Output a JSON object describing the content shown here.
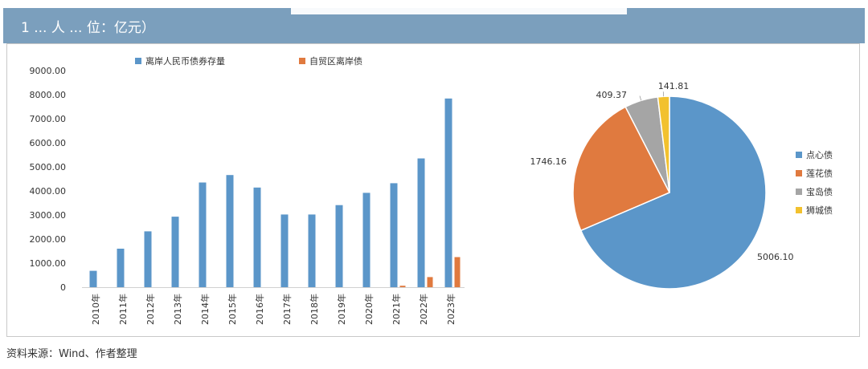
{
  "header": {
    "title": "1 ... 人 ... 位：亿元）"
  },
  "source_note": "资料来源：Wind、作者整理",
  "colors": {
    "header_bg": "#7b9fbd",
    "blue": "#5b96c9",
    "orange": "#e07a3f",
    "gray": "#a5a5a5",
    "yellow": "#f2c12e"
  },
  "chart_data": [
    {
      "type": "bar",
      "categories": [
        "2010年",
        "2011年",
        "2012年",
        "2013年",
        "2014年",
        "2015年",
        "2016年",
        "2017年",
        "2018年",
        "2019年",
        "2020年",
        "2021年",
        "2022年",
        "2023年"
      ],
      "y_ticks": [
        "0",
        "1000.00",
        "2000.00",
        "3000.00",
        "4000.00",
        "5000.00",
        "6000.00",
        "7000.00",
        "8000.00",
        "9000.00"
      ],
      "ylim": [
        0,
        9000
      ],
      "legend_position": "top",
      "series": [
        {
          "name": "离岸人民币债券存量",
          "color": "#5b96c9",
          "values": [
            680,
            1600,
            2320,
            2930,
            4350,
            4660,
            4140,
            3020,
            3020,
            3410,
            3920,
            4320,
            5350,
            7840
          ]
        },
        {
          "name": "自贸区离岸债",
          "color": "#e07a3f",
          "values": [
            0,
            0,
            0,
            0,
            0,
            0,
            0,
            0,
            0,
            0,
            0,
            60,
            420,
            1250
          ]
        }
      ]
    },
    {
      "type": "pie",
      "legend_position": "right",
      "slices": [
        {
          "name": "点心债",
          "value": 5006.1,
          "label": "5006.10",
          "color": "#5b96c9"
        },
        {
          "name": "莲花债",
          "value": 1746.16,
          "label": "1746.16",
          "color": "#e07a3f"
        },
        {
          "name": "宝岛债",
          "value": 409.37,
          "label": "409.37",
          "color": "#a5a5a5"
        },
        {
          "name": "狮城债",
          "value": 141.81,
          "label": "141.81",
          "color": "#f2c12e"
        }
      ]
    }
  ]
}
